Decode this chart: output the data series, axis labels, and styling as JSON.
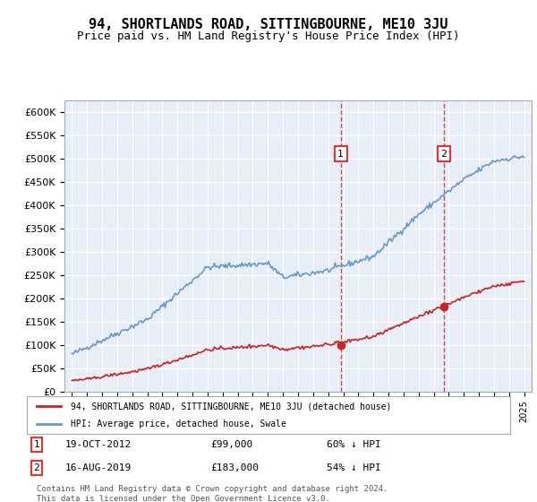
{
  "title": "94, SHORTLANDS ROAD, SITTINGBOURNE, ME10 3JU",
  "subtitle": "Price paid vs. HM Land Registry's House Price Index (HPI)",
  "title_fontsize": 11,
  "subtitle_fontsize": 9,
  "background_color": "#ffffff",
  "plot_background": "#e8eef8",
  "grid_color": "#ffffff",
  "hpi_color": "#6699cc",
  "property_color": "#cc2222",
  "dashed_line_color": "#cc2222",
  "ylim": [
    0,
    625000
  ],
  "ytick_step": 50000,
  "xlabel": "",
  "ylabel": "",
  "sale1_date": "2012-10-19",
  "sale1_price": 99000,
  "sale1_label": "1",
  "sale1_text": "19-OCT-2012     £99,000     60% ↓ HPI",
  "sale2_date": "2019-08-16",
  "sale2_price": 183000,
  "sale2_label": "2",
  "sale2_text": "16-AUG-2019     £183,000     54% ↓ HPI",
  "legend_property": "94, SHORTLANDS ROAD, SITTINGBOURNE, ME10 3JU (detached house)",
  "legend_hpi": "HPI: Average price, detached house, Swale",
  "footnote": "Contains HM Land Registry data © Crown copyright and database right 2024.\nThis data is licensed under the Open Government Licence v3.0.",
  "xstart_year": 1995,
  "xend_year": 2025
}
